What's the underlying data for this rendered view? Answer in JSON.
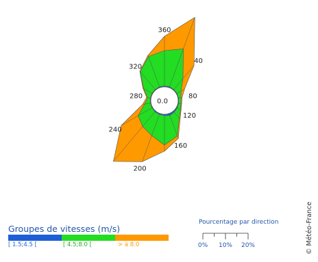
{
  "chart_data": {
    "type": "wind-rose",
    "title": "",
    "calm_label": "0.0",
    "direction_labels": [
      "360",
      "40",
      "80",
      "120",
      "160",
      "200",
      "240",
      "280",
      "320"
    ],
    "directions_deg": [
      0,
      20,
      40,
      60,
      80,
      100,
      120,
      140,
      160,
      180,
      200,
      220,
      240,
      260,
      280,
      300,
      320,
      340
    ],
    "series": [
      {
        "name": "[ 1.5;4.5 [",
        "color": "#1f5fd6",
        "values": [
          0.3,
          0.3,
          0.2,
          0.2,
          0.2,
          0.2,
          0.3,
          0.4,
          0.6,
          0.4,
          0.3,
          0.3,
          0.2,
          0.2,
          0.2,
          0.2,
          0.2,
          0.3
        ]
      },
      {
        "name": "[ 4.5;8.0 [",
        "color": "#22dd22",
        "values": [
          10.3,
          11.8,
          4.2,
          1.4,
          0.7,
          0.7,
          1.1,
          2.3,
          6.4,
          8.6,
          6.6,
          5.6,
          4.7,
          1.7,
          0.8,
          2.8,
          6.8,
          9.4
        ]
      },
      {
        "name": "> à 8.0",
        "color": "#ff9900",
        "values": [
          4.2,
          9.8,
          5.0,
          1.2,
          0.3,
          0.2,
          0.2,
          0.4,
          0.8,
          1.8,
          8.1,
          13.3,
          5.7,
          0.6,
          0.3,
          0.3,
          0.2,
          0.4
        ]
      }
    ],
    "scale_ticks": [
      0,
      10,
      20
    ],
    "scale_tick_labels": [
      "0%",
      "10%",
      "20%"
    ],
    "scale_unit": "%"
  },
  "legend": {
    "title": "Groupes de vitesses (m/s)",
    "items": [
      {
        "label": "[ 1.5;4.5 [",
        "color": "#1f5fd6",
        "text_color": "#1f5fd6"
      },
      {
        "label": "[ 4.5;8.0 [",
        "color": "#22dd22",
        "text_color": "#22aa22"
      },
      {
        "label": "> à 8.0",
        "color": "#ff9900",
        "text_color": "#ff9900"
      }
    ]
  },
  "percent_scale": {
    "title": "Pourcentage par direction"
  },
  "copyright": "© Météo-France"
}
